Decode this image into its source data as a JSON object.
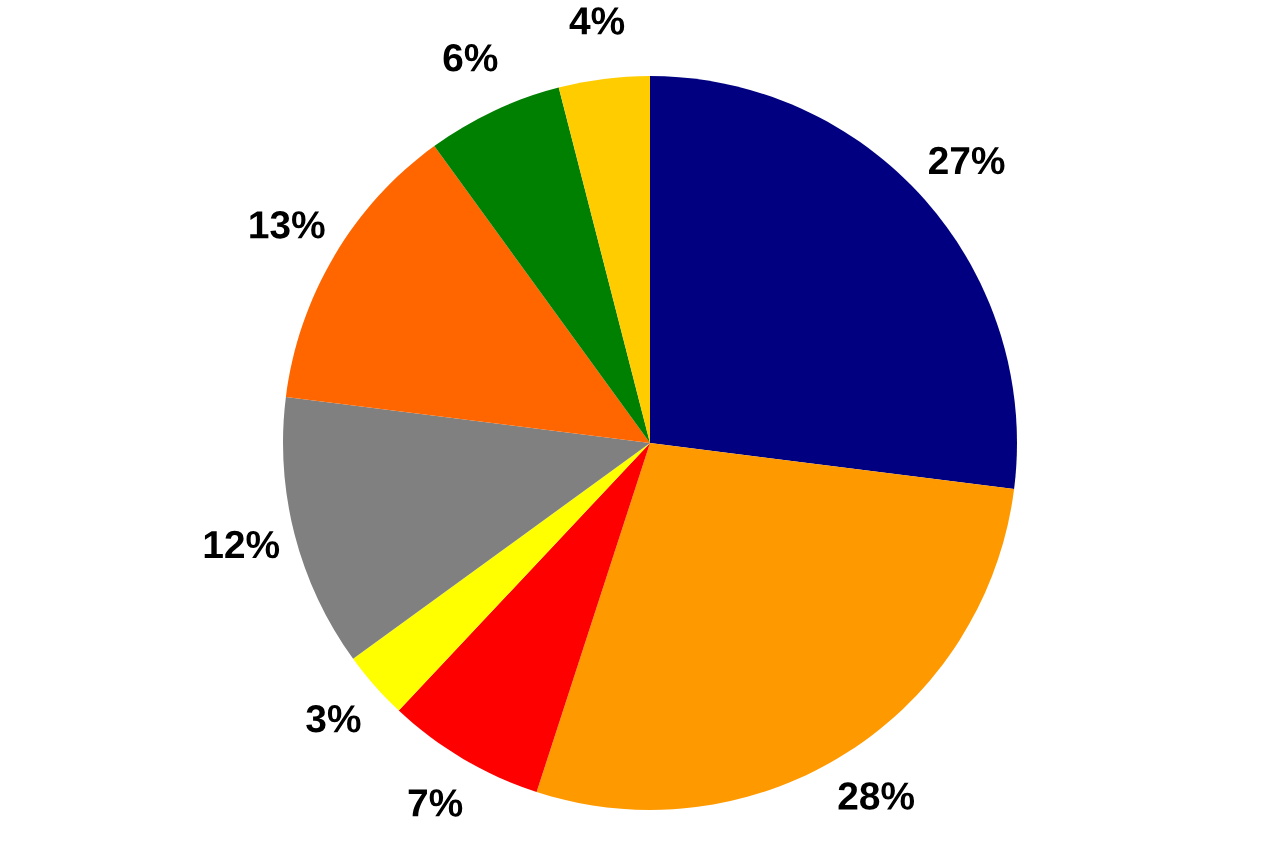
{
  "chart_data": {
    "type": "pie",
    "categories": [
      null,
      null,
      null,
      null,
      null,
      null,
      null,
      null
    ],
    "values": [
      27,
      28,
      7,
      3,
      12,
      13,
      6,
      4
    ],
    "colors": [
      "#000080",
      "#ff9900",
      "#ff0000",
      "#ffff00",
      "#808080",
      "#ff6600",
      "#008000",
      "#ffcc00"
    ],
    "value_labels": [
      "27%",
      "28%",
      "7%",
      "3%",
      "12%",
      "13%",
      "6%",
      "4%"
    ]
  }
}
